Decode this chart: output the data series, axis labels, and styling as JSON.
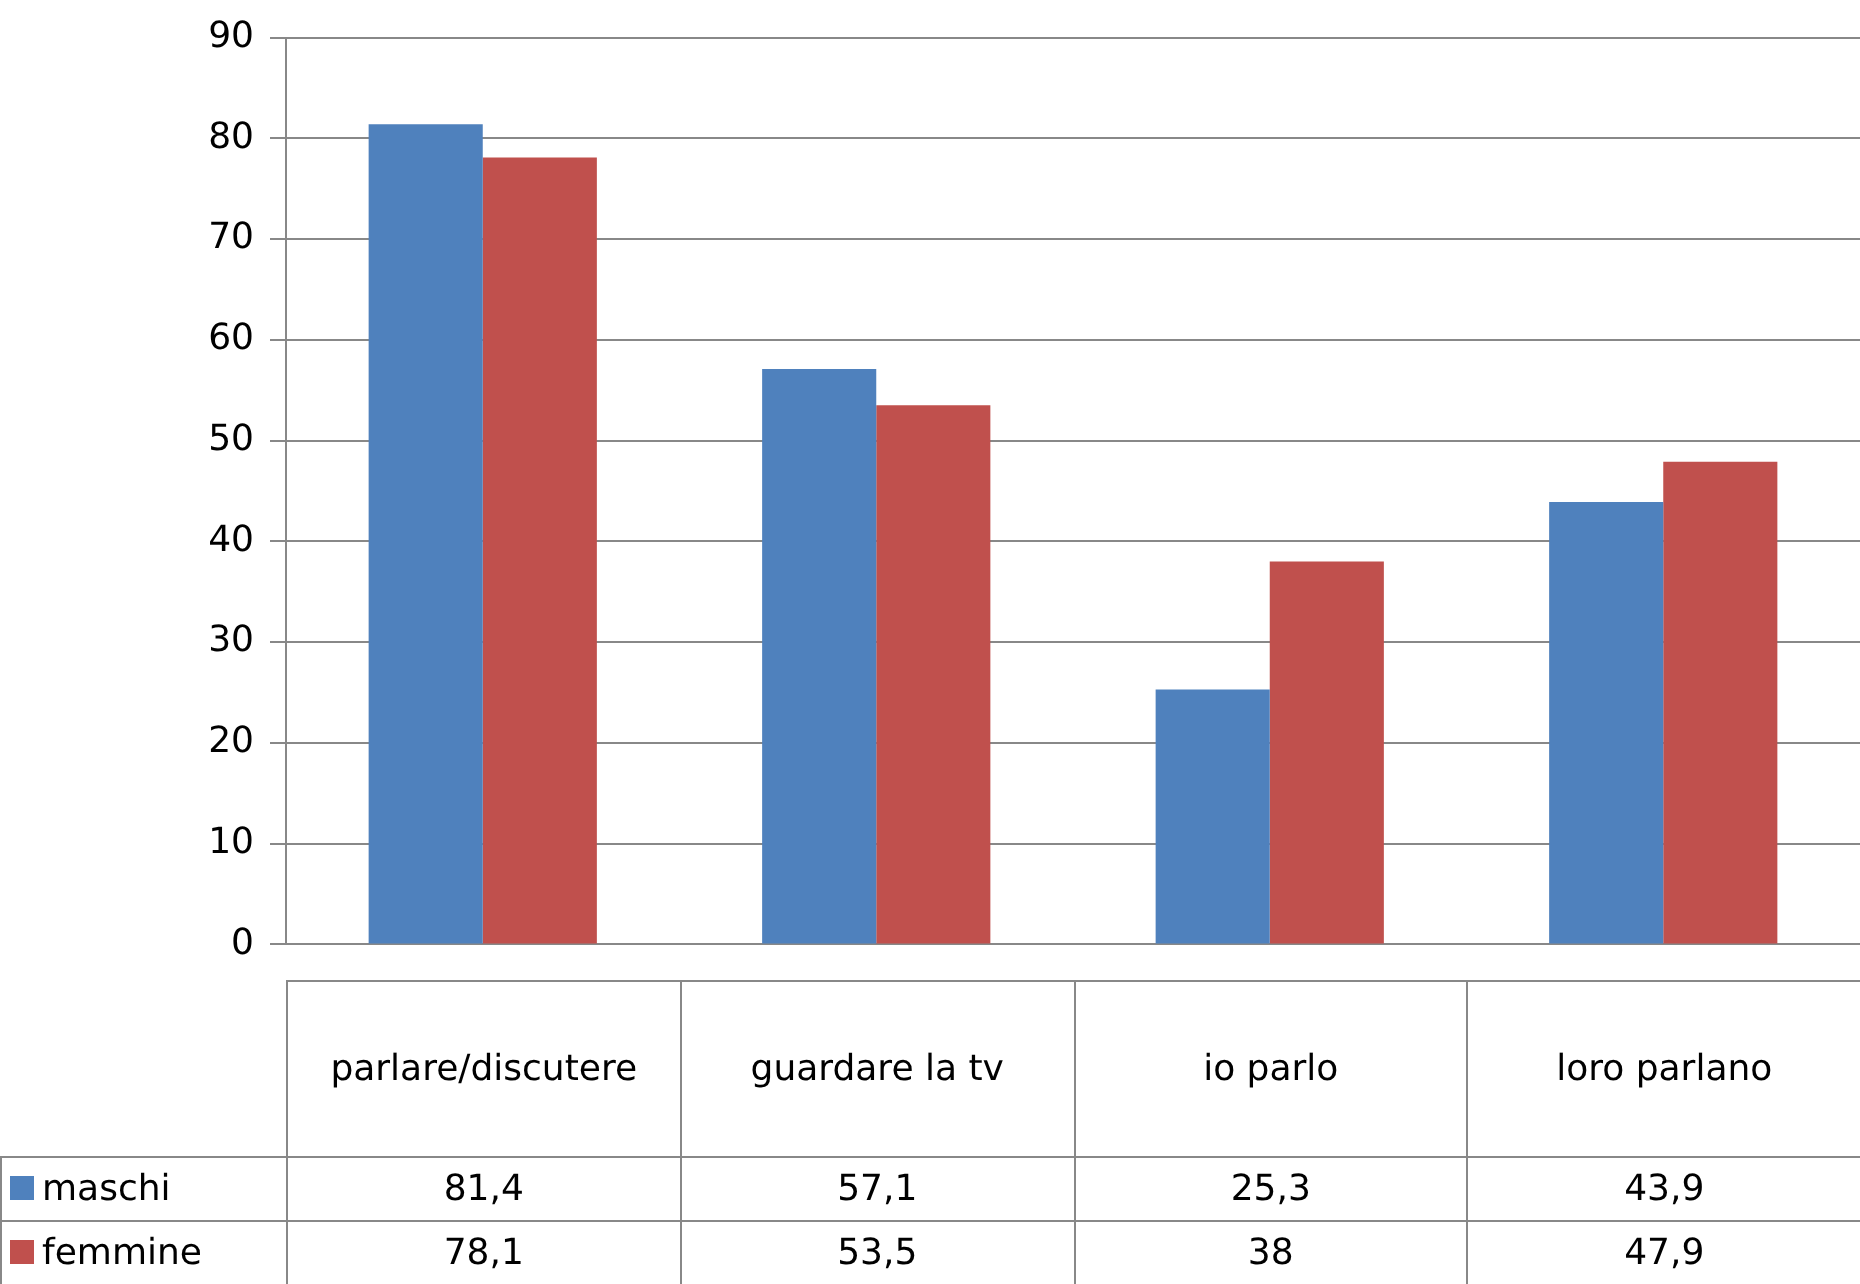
{
  "chart_data": {
    "type": "bar",
    "categories": [
      "parlare/discutere",
      "guardare la tv",
      "io parlo",
      "loro parlano"
    ],
    "series": [
      {
        "name": "maschi",
        "color": "#4f81bd",
        "values": [
          81.4,
          57.1,
          25.3,
          43.9
        ],
        "value_labels": [
          "81,4",
          "57,1",
          "25,3",
          "43,9"
        ]
      },
      {
        "name": "femmine",
        "color": "#c0504d",
        "values": [
          78.1,
          53.5,
          38,
          47.9
        ],
        "value_labels": [
          "78,1",
          "53,5",
          "38",
          "47,9"
        ]
      }
    ],
    "ylim": [
      0,
      90
    ],
    "yticks": [
      0,
      10,
      20,
      30,
      40,
      50,
      60,
      70,
      80,
      90
    ],
    "grid": "y",
    "legend": "bottom"
  }
}
